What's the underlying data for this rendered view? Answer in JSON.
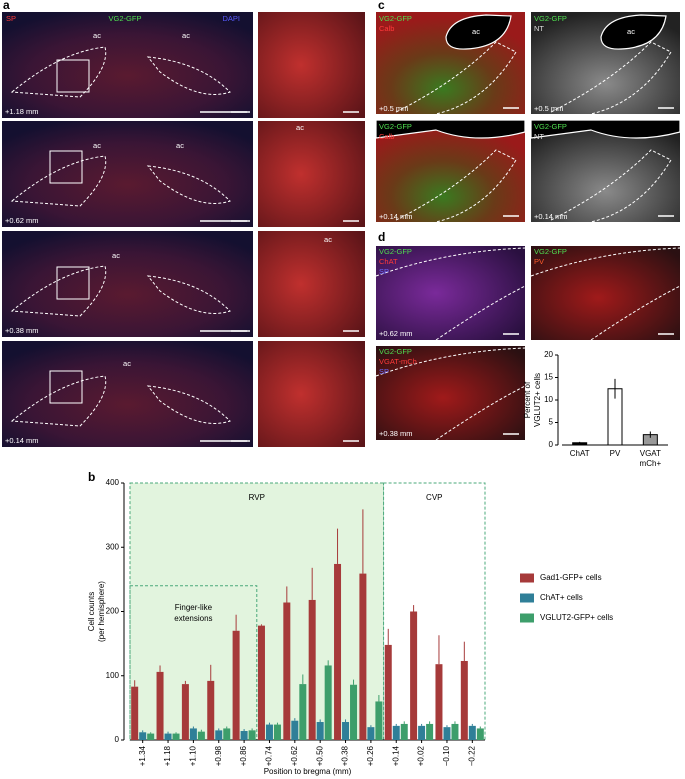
{
  "panel_a": {
    "letter": "a",
    "channels": [
      "SP",
      "VG2-GFP",
      "DAPI"
    ],
    "sections": [
      {
        "labels": [
          "ac",
          "ac"
        ],
        "bregma": "+1.18 mm"
      },
      {
        "labels": [
          "ac",
          "ac"
        ],
        "bregma": "+0.62 mm"
      },
      {
        "labels": [
          "ac"
        ],
        "bregma": "+0.38 mm"
      },
      {
        "labels": [
          "ac"
        ],
        "bregma": "+0.14 mm"
      }
    ],
    "zoom_labels": [
      "ac",
      "ac"
    ]
  },
  "panel_c": {
    "letter": "c",
    "images": [
      {
        "labels": [
          "VG2-GFP",
          "Calb"
        ],
        "region": "ac",
        "bregma": "+0.5 mm"
      },
      {
        "labels": [
          "VG2-GFP",
          "NT"
        ],
        "region": "ac",
        "bregma": "+0.5 mm"
      },
      {
        "labels": [
          "VG2-GFP",
          "Calb"
        ],
        "bregma": "+0.14 mm"
      },
      {
        "labels": [
          "VG2-GFP",
          "NT"
        ],
        "bregma": "+0.14 mm"
      }
    ]
  },
  "panel_d": {
    "letter": "d",
    "images": [
      {
        "labels": [
          "VG2-GFP",
          "ChAT",
          "SP"
        ],
        "bregma": "+0.62 mm"
      },
      {
        "labels": [
          "VG2-GFP",
          "PV"
        ]
      },
      {
        "labels": [
          "VG2-GFP",
          "VGAT-mCh",
          "SP"
        ],
        "bregma": "+0.38 mm"
      }
    ]
  },
  "panel_b": {
    "letter": "b"
  },
  "chart_data": [
    {
      "type": "bar",
      "categories": [
        "+1.34",
        "+1.18",
        "+1.10",
        "+0.98",
        "+0.86",
        "+0.74",
        "+0.62",
        "+0.50",
        "+0.38",
        "+0.26",
        "+0.14",
        "+0.02",
        "−0.10",
        "−0.22"
      ],
      "series": [
        {
          "name": "Gad1-GFP+ cells",
          "color": "#a63a3a",
          "values": [
            83,
            106,
            87,
            92,
            170,
            178,
            214,
            218,
            274,
            259,
            148,
            200,
            118,
            123
          ],
          "errors": [
            10,
            10,
            5,
            25,
            25,
            2,
            25,
            50,
            55,
            100,
            25,
            10,
            45,
            30
          ]
        },
        {
          "name": "ChAT+ cells",
          "color": "#2f7f98",
          "values": [
            12,
            10,
            18,
            15,
            14,
            24,
            30,
            28,
            28,
            20,
            22,
            22,
            20,
            22
          ],
          "errors": [
            3,
            3,
            3,
            3,
            3,
            3,
            4,
            4,
            4,
            3,
            3,
            3,
            3,
            3
          ]
        },
        {
          "name": "VGLUT2-GFP+ cells",
          "color": "#3d9e6b",
          "values": [
            10,
            10,
            13,
            18,
            15,
            24,
            87,
            116,
            86,
            60,
            25,
            25,
            25,
            18
          ],
          "errors": [
            2,
            2,
            3,
            3,
            3,
            3,
            15,
            8,
            8,
            10,
            4,
            4,
            4,
            3
          ]
        }
      ],
      "ylim": [
        0,
        400
      ],
      "yticks": [
        0,
        100,
        200,
        300,
        400
      ],
      "ylabel": [
        "Cell counts",
        "(per hemisphere)"
      ],
      "xlabel": "Position to bregma (mm)",
      "regions": [
        {
          "label": [
            "RVP"
          ]
        },
        {
          "label": [
            "CVP"
          ]
        },
        {
          "label": [
            "Finger-like",
            "extensions"
          ]
        }
      ]
    },
    {
      "type": "bar",
      "categories": [
        "ChAT",
        "PV",
        [
          "VGAT",
          "mCh+"
        ]
      ],
      "values": [
        0.5,
        12.5,
        2.3
      ],
      "errors": [
        0.2,
        2.2,
        0.7
      ],
      "colors": [
        "#000000",
        "#ffffff",
        "#999999"
      ],
      "ylim": [
        0,
        20
      ],
      "yticks": [
        0,
        5,
        10,
        15,
        20
      ],
      "ylabel": [
        "Percent of",
        "VGLUT2+ cells"
      ]
    }
  ]
}
